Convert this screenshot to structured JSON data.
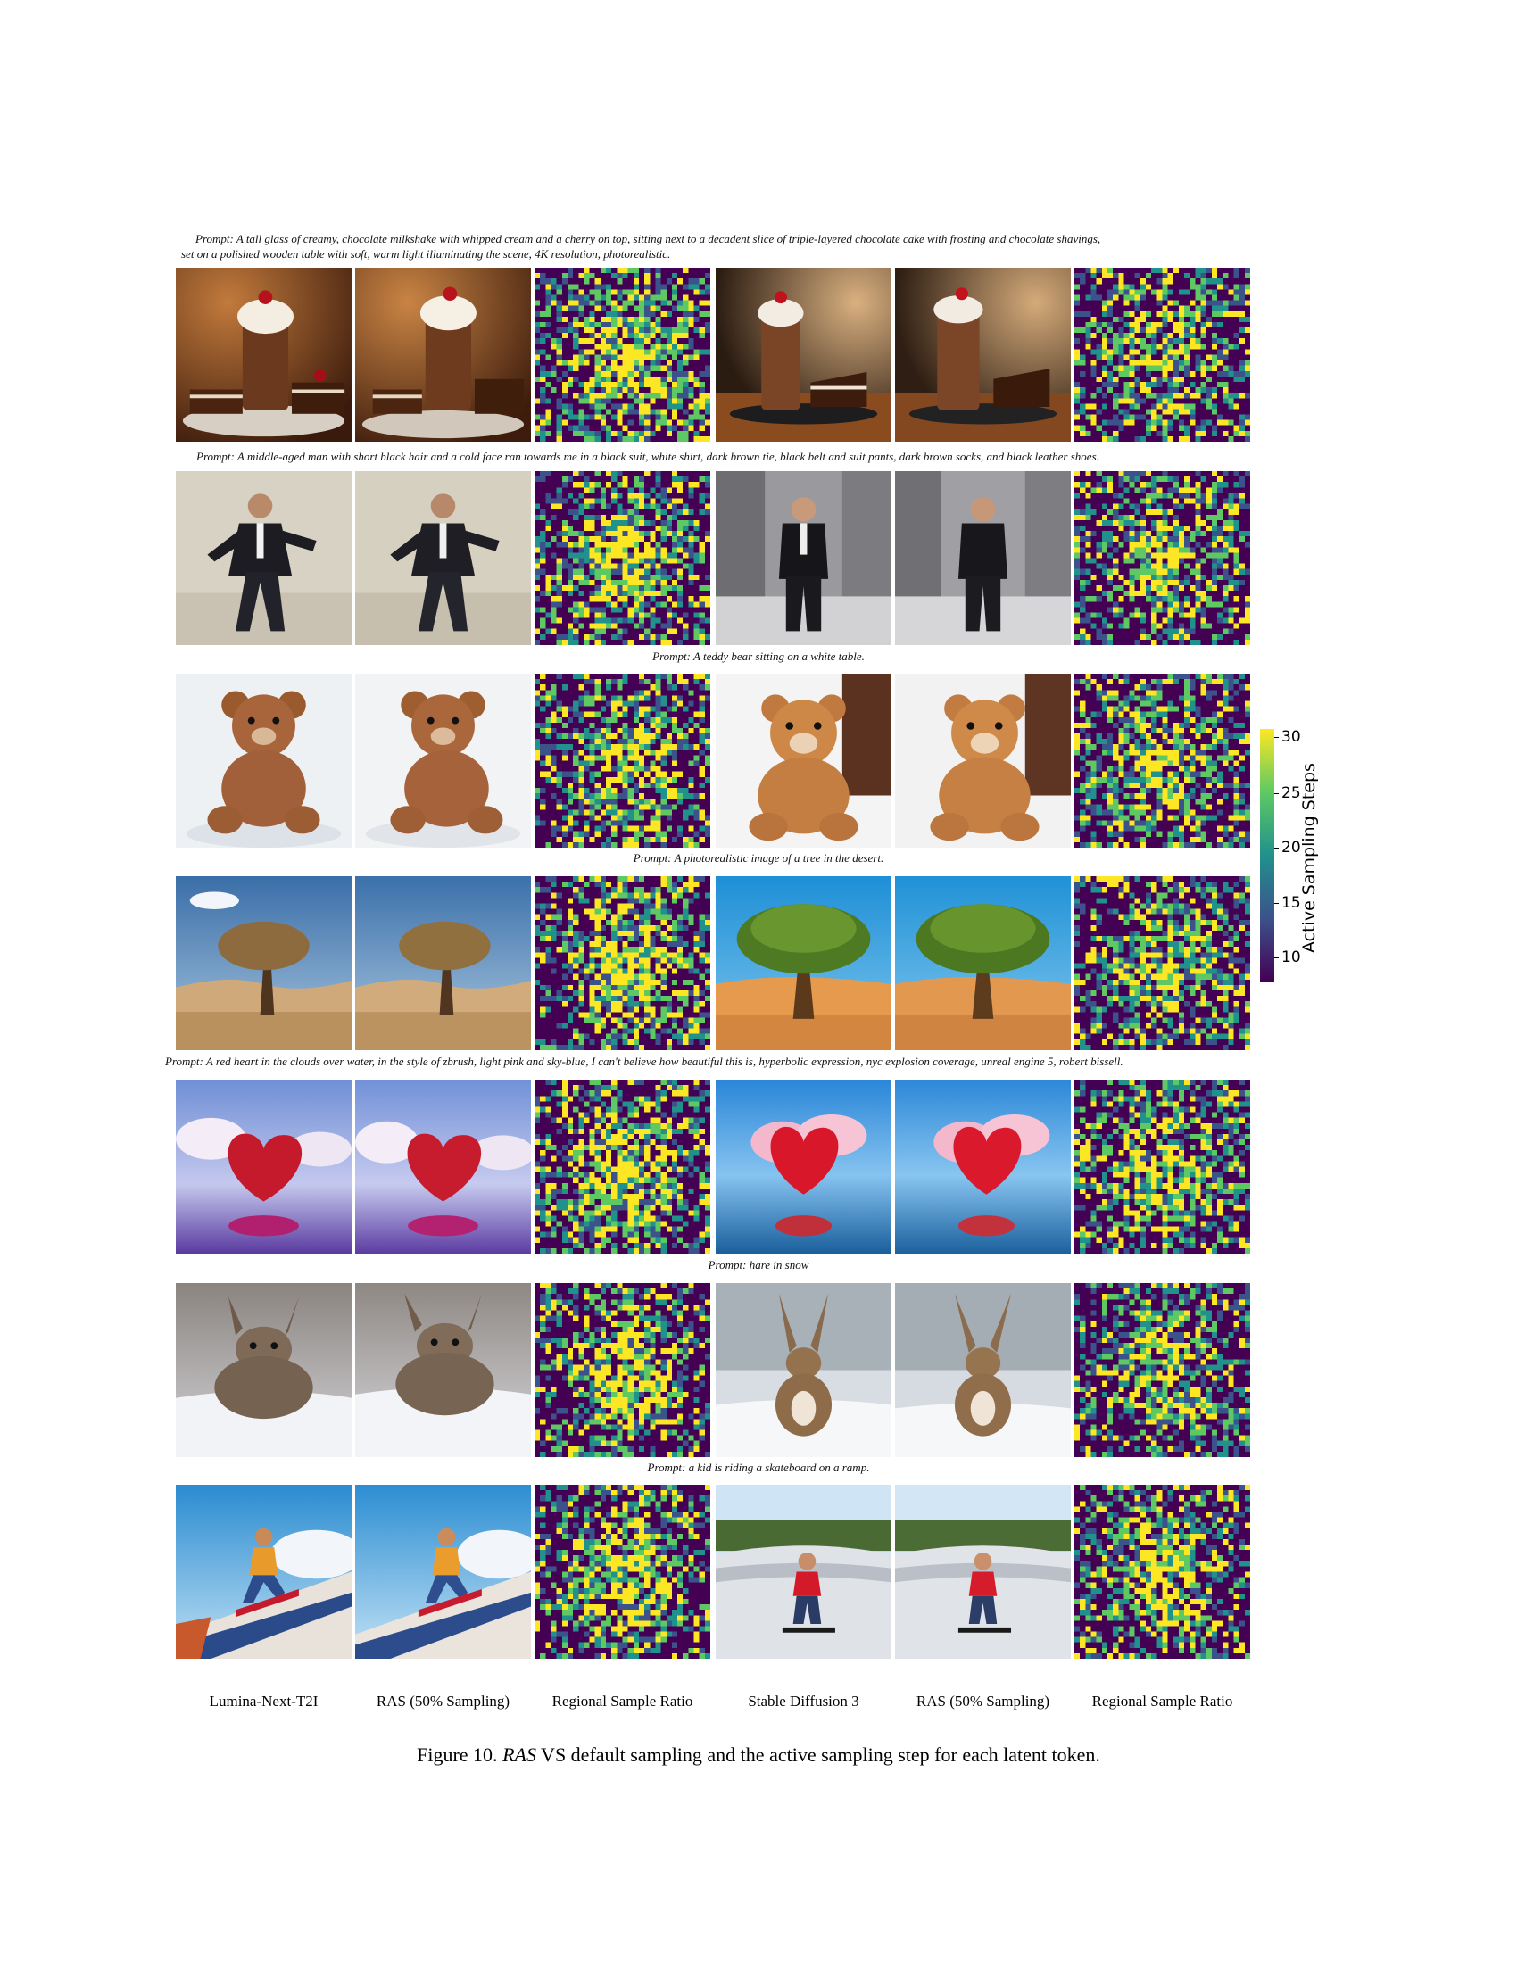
{
  "prompts": [
    "Prompt: A tall glass of creamy, chocolate milkshake with whipped cream and a cherry on top, sitting next to a decadent slice of triple-layered chocolate cake with frosting and chocolate shavings,",
    "set on a polished wooden table with soft, warm light illuminating the scene, 4K resolution, photorealistic.",
    "Prompt: A middle-aged man with short black hair and a cold face ran towards me in a black suit, white shirt, dark brown tie, black belt and suit pants, dark brown socks, and black leather shoes.",
    "Prompt: A teddy bear sitting on a white table.",
    "Prompt: A photorealistic image of a tree in the desert.",
    "Prompt: A red heart in the clouds over water, in the style of zbrush, light pink and sky-blue, I can't believe how beautiful this is, hyperbolic expression, nyc explosion coverage, unreal engine 5, robert bissell.",
    "Prompt: hare in snow",
    "Prompt: a kid is riding a skateboard on a ramp."
  ],
  "column_labels": [
    "Lumina-Next-T2I",
    "RAS (50% Sampling)",
    "Regional Sample Ratio",
    "Stable Diffusion 3",
    "RAS (50% Sampling)",
    "Regional Sample Ratio"
  ],
  "colorbar": {
    "label": "Active Sampling Steps",
    "ticks": [
      "30",
      "25",
      "20",
      "15",
      "10"
    ],
    "range": [
      7,
      32
    ],
    "colors": [
      "#440154",
      "#3b528b",
      "#21918c",
      "#5ec962",
      "#fde725"
    ]
  },
  "caption": {
    "prefix": "Figure 10. ",
    "emphasis": "RAS",
    "text": " VS default sampling and the active sampling step for each latent token."
  }
}
